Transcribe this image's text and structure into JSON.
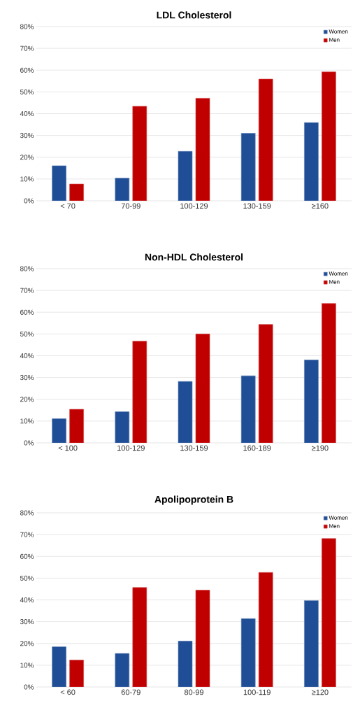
{
  "chart_data": [
    {
      "type": "bar",
      "title": "LDL Cholesterol",
      "categories": [
        "< 70",
        "70-99",
        "100-129",
        "130-159",
        "≥160"
      ],
      "series": [
        {
          "name": "Women",
          "color": "#1f4e96",
          "values": [
            16.1,
            10.4,
            22.7,
            31.0,
            35.9
          ]
        },
        {
          "name": "Men",
          "color": "#c00000",
          "values": [
            7.7,
            43.4,
            47.1,
            55.9,
            59.2
          ]
        }
      ],
      "ylim": [
        0,
        80
      ],
      "yticks": [
        {
          "value": 0,
          "label": "0%"
        },
        {
          "value": 10,
          "label": "10%"
        },
        {
          "value": 20,
          "label": "20%"
        },
        {
          "value": 30,
          "label": "30%"
        },
        {
          "value": 40,
          "label": "40%"
        },
        {
          "value": 50,
          "label": "50%"
        },
        {
          "value": 60,
          "label": "60%"
        },
        {
          "value": 70,
          "label": "70%"
        },
        {
          "value": 80,
          "label": "80%"
        }
      ],
      "grid": "y",
      "legend": "top right"
    },
    {
      "type": "bar",
      "title": "Non-HDL Cholesterol",
      "categories": [
        "< 100",
        "100-129",
        "130-159",
        "160-189",
        "≥190"
      ],
      "series": [
        {
          "name": "Women",
          "color": "#1f4e96",
          "values": [
            11.1,
            14.3,
            28.2,
            30.8,
            38.1
          ]
        },
        {
          "name": "Men",
          "color": "#c00000",
          "values": [
            15.4,
            46.7,
            50.0,
            54.4,
            64.0
          ]
        }
      ],
      "ylim": [
        0,
        80
      ],
      "yticks": [
        {
          "value": 0,
          "label": "0%"
        },
        {
          "value": 10,
          "label": "10%"
        },
        {
          "value": 20,
          "label": "20%"
        },
        {
          "value": 30,
          "label": "30%"
        },
        {
          "value": 40,
          "label": "40%"
        },
        {
          "value": 50,
          "label": "50%"
        },
        {
          "value": 60,
          "label": "60%"
        },
        {
          "value": 70,
          "label": "70%"
        },
        {
          "value": 80,
          "label": "80%"
        }
      ],
      "grid": "y",
      "legend": "top right"
    },
    {
      "type": "bar",
      "title": "Apolipoprotein B",
      "categories": [
        "< 60",
        "60-79",
        "80-99",
        "100-119",
        "≥120"
      ],
      "series": [
        {
          "name": "Women",
          "color": "#1f4e96",
          "values": [
            18.5,
            15.4,
            21.1,
            31.4,
            39.7
          ]
        },
        {
          "name": "Men",
          "color": "#c00000",
          "values": [
            12.4,
            45.7,
            44.5,
            52.6,
            68.2
          ]
        }
      ],
      "ylim": [
        0,
        80
      ],
      "yticks": [
        {
          "value": 0,
          "label": "0%"
        },
        {
          "value": 10,
          "label": "10%"
        },
        {
          "value": 20,
          "label": "20%"
        },
        {
          "value": 30,
          "label": "30%"
        },
        {
          "value": 40,
          "label": "40%"
        },
        {
          "value": 50,
          "label": "50%"
        },
        {
          "value": 60,
          "label": "60%"
        },
        {
          "value": 70,
          "label": "70%"
        },
        {
          "value": 80,
          "label": "80%"
        }
      ],
      "grid": "y",
      "legend": "top right"
    }
  ]
}
